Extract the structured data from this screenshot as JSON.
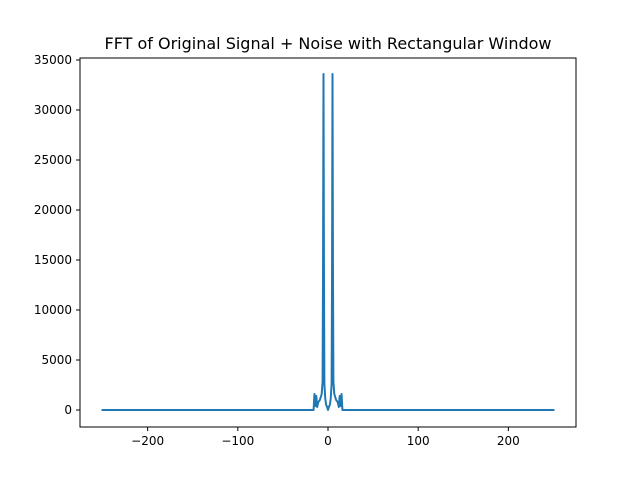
{
  "chart_data": {
    "type": "line",
    "title": "FFT of Original Signal + Noise with Rectangular Window",
    "xlabel": "",
    "ylabel": "",
    "xlim": [
      -275,
      275
    ],
    "ylim": [
      -1700,
      35200
    ],
    "xticks": [
      -200,
      -100,
      0,
      100,
      200
    ],
    "xtick_labels": [
      "−200",
      "−100",
      "0",
      "100",
      "200"
    ],
    "yticks": [
      0,
      5000,
      10000,
      15000,
      20000,
      25000,
      30000,
      35000
    ],
    "ytick_labels": [
      "0",
      "5000",
      "10000",
      "15000",
      "20000",
      "25000",
      "30000",
      "35000"
    ],
    "grid": false,
    "color": "#1f77b4",
    "series": [
      {
        "x": [
          -250,
          -50,
          -16,
          -15,
          -14,
          -13,
          -12,
          -11,
          -10,
          -9,
          -8,
          -7,
          -6,
          -5.5,
          -5,
          -4.5,
          -4,
          -3,
          -2,
          -1,
          0,
          1,
          2,
          3,
          4,
          4.5,
          5,
          5.5,
          6,
          7,
          8,
          9,
          10,
          11,
          12,
          13,
          14,
          15,
          16,
          50,
          250
        ],
        "y": [
          0,
          0,
          0,
          1600,
          400,
          1400,
          300,
          700,
          900,
          1000,
          1300,
          1600,
          2800,
          14000,
          33600,
          14000,
          2600,
          1100,
          500,
          300,
          0,
          300,
          500,
          1100,
          2600,
          14000,
          33600,
          14000,
          2800,
          1600,
          1300,
          1000,
          900,
          700,
          300,
          1400,
          400,
          1600,
          0,
          0,
          0
        ]
      }
    ]
  }
}
